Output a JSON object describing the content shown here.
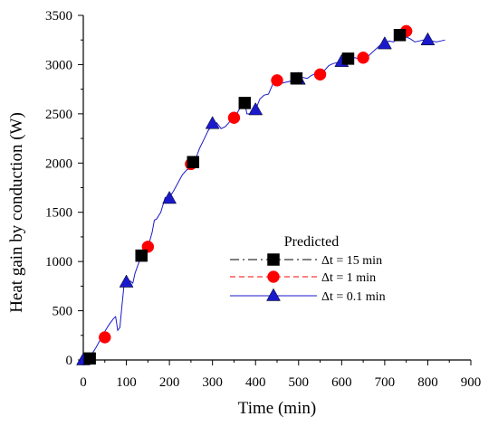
{
  "chart_data": {
    "type": "line",
    "xlabel": "Time (min)",
    "ylabel": "Heat gain by conduction (W)",
    "xlim": [
      0,
      900
    ],
    "ylim": [
      0,
      3500
    ],
    "xticks": [
      0,
      100,
      200,
      300,
      400,
      500,
      600,
      700,
      800,
      900
    ],
    "yticks": [
      0,
      500,
      1000,
      1500,
      2000,
      2500,
      3000,
      3500
    ],
    "grid": false,
    "legend": {
      "title": "Predicted",
      "placement": "center-right"
    },
    "series": [
      {
        "name": "Δt = 15 min",
        "color": "#000000",
        "line_style": "dash-dot",
        "marker": "square",
        "x": [
          15,
          135,
          255,
          375,
          495,
          615,
          735
        ],
        "y": [
          15,
          1060,
          2010,
          2610,
          2860,
          3060,
          3300
        ]
      },
      {
        "name": "Δt = 1 min",
        "color": "#ff0000",
        "line_style": "dashed",
        "marker": "circle",
        "x": [
          50,
          150,
          250,
          350,
          450,
          550,
          650,
          750
        ],
        "y": [
          230,
          1150,
          1990,
          2460,
          2840,
          2900,
          3070,
          3340
        ]
      },
      {
        "name": "Δt = 0.1 min",
        "color": "#1a1acc",
        "line_style": "solid",
        "marker": "triangle",
        "x": [
          0,
          10,
          20,
          30,
          40,
          50,
          60,
          70,
          75,
          80,
          85,
          90,
          95,
          100,
          110,
          115,
          120,
          130,
          135,
          140,
          150,
          160,
          165,
          170,
          180,
          190,
          200,
          210,
          220,
          230,
          240,
          250,
          255,
          260,
          270,
          280,
          290,
          300,
          310,
          320,
          330,
          340,
          350,
          360,
          370,
          375,
          380,
          390,
          400,
          410,
          420,
          430,
          440,
          450,
          460,
          470,
          480,
          490,
          500,
          510,
          520,
          530,
          540,
          550,
          560,
          570,
          580,
          590,
          600,
          610,
          615,
          620,
          630,
          640,
          650,
          660,
          670,
          680,
          690,
          700,
          710,
          720,
          730,
          740,
          750,
          760,
          770,
          780,
          790,
          800,
          810,
          820,
          830,
          840
        ],
        "y": [
          0,
          20,
          60,
          130,
          210,
          290,
          360,
          420,
          440,
          300,
          330,
          560,
          780,
          810,
          800,
          780,
          880,
          1000,
          1060,
          1050,
          1140,
          1300,
          1420,
          1430,
          1500,
          1650,
          1650,
          1720,
          1800,
          1880,
          1930,
          1950,
          2010,
          2030,
          2150,
          2240,
          2330,
          2390,
          2410,
          2350,
          2370,
          2420,
          2440,
          2530,
          2600,
          2610,
          2500,
          2500,
          2540,
          2650,
          2690,
          2700,
          2800,
          2840,
          2810,
          2820,
          2830,
          2840,
          2850,
          2870,
          2860,
          2890,
          2910,
          2900,
          2940,
          2990,
          3010,
          3020,
          3030,
          3050,
          3060,
          3060,
          3070,
          3060,
          3080,
          3080,
          3120,
          3160,
          3200,
          3210,
          3240,
          3230,
          3260,
          3270,
          3280,
          3260,
          3230,
          3240,
          3250,
          3250,
          3240,
          3230,
          3240,
          3250
        ],
        "marker_x": [
          0,
          100,
          200,
          300,
          400,
          500,
          600,
          700,
          800
        ],
        "marker_y": [
          0,
          790,
          1640,
          2400,
          2540,
          2850,
          3030,
          3210,
          3250
        ]
      }
    ]
  }
}
